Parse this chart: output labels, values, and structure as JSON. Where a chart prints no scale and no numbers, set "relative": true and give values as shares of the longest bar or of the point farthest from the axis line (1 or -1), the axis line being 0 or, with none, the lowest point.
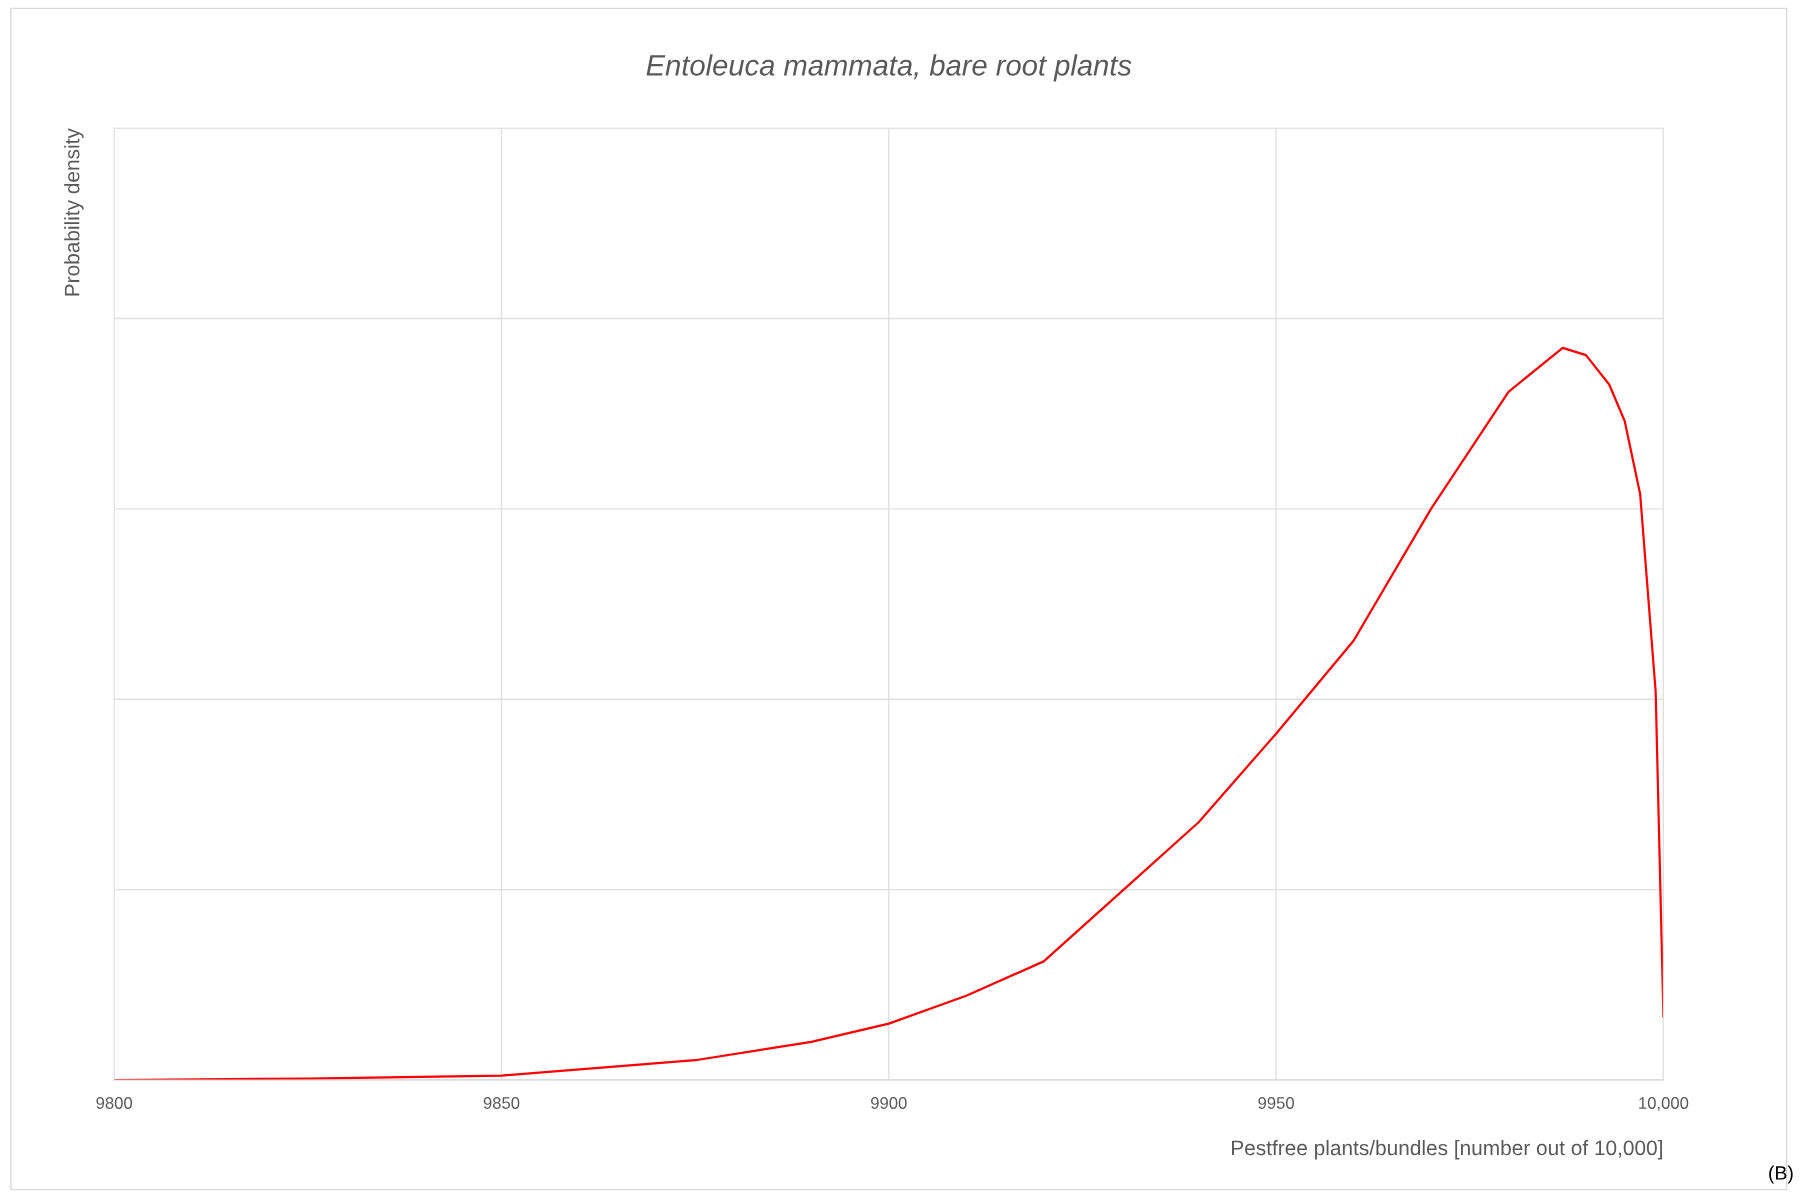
{
  "chart_data": {
    "type": "line",
    "title": "Entoleuca mammata, bare root plants",
    "xlabel": "Pestfree plants/bundles [number out of 10,000]",
    "ylabel": "Probability density",
    "relative": true,
    "tick_labels": "x",
    "grid": true,
    "x": [
      9800,
      9825,
      9850,
      9875,
      9890,
      9900,
      9910,
      9920,
      9930,
      9940,
      9950,
      9960,
      9970,
      9980,
      9987,
      9990,
      9993,
      9995,
      9997,
      9999,
      10000
    ],
    "series": [
      {
        "color": "#ff0000",
        "values": [
          0,
          0.002,
          0.006,
          0.027,
          0.052,
          0.077,
          0.115,
          0.162,
          0.257,
          0.352,
          0.473,
          0.6,
          0.78,
          0.94,
          1,
          0.99,
          0.95,
          0.9,
          0.8,
          0.53,
          0.087
        ]
      }
    ],
    "xlim": [
      9800,
      10000
    ],
    "xticks": [
      9800,
      9850,
      9900,
      9950,
      {
        "value": 10000,
        "label": "10,000"
      }
    ],
    "annotations": [
      "(B)"
    ]
  }
}
